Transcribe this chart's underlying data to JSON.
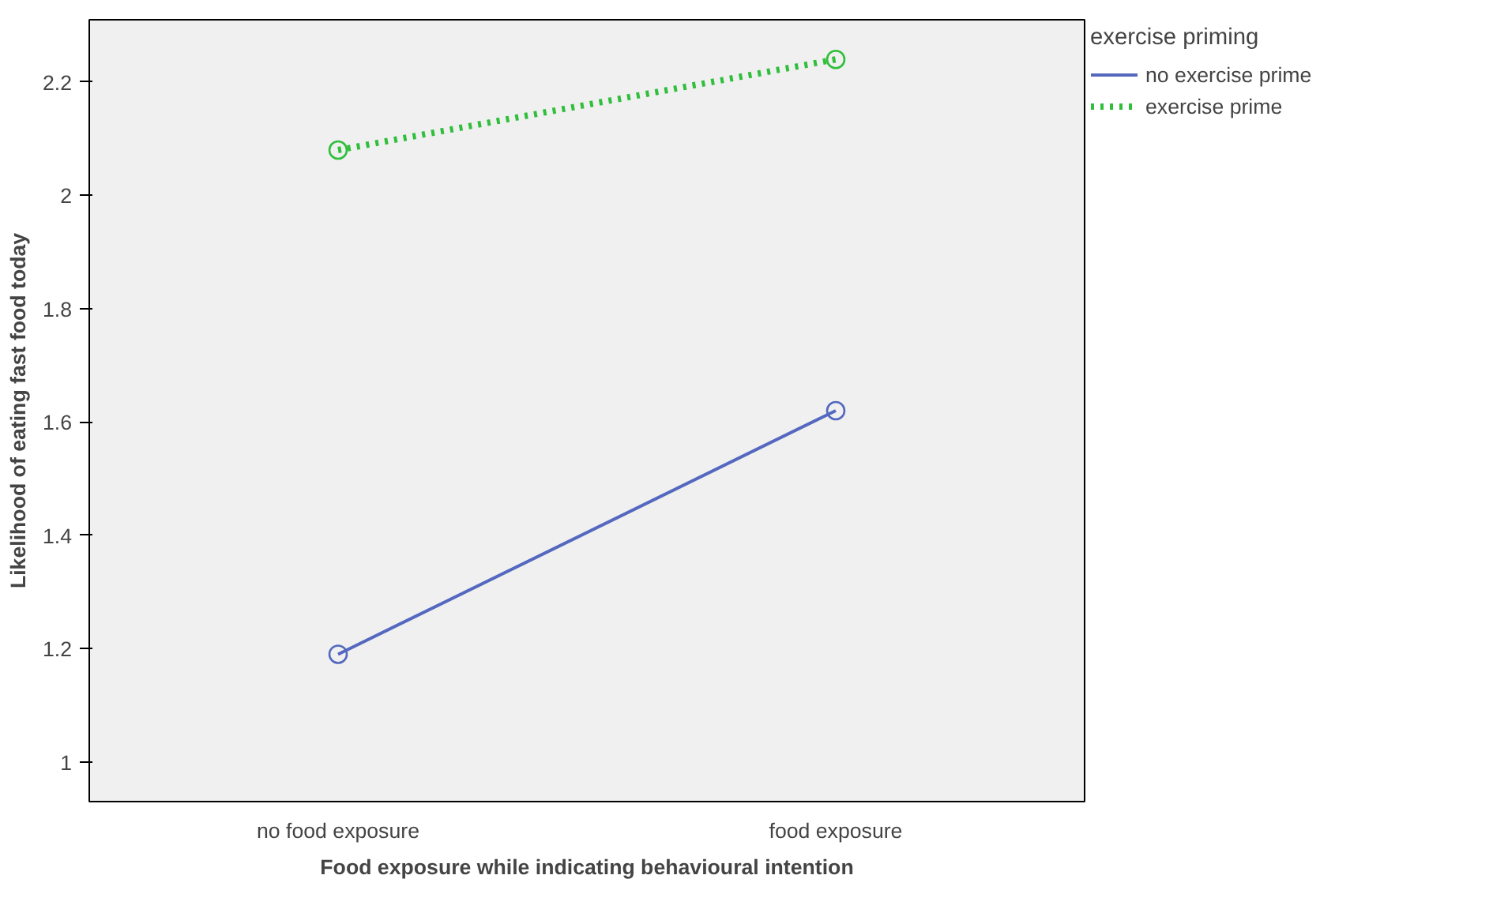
{
  "chart_data": {
    "type": "line",
    "xlabel": "Food exposure while indicating behavioural intention",
    "ylabel": "Likelihood of eating fast food today",
    "legend_title": "exercise priming",
    "categories": [
      "no food exposure",
      "food exposure"
    ],
    "series": [
      {
        "name": "no exercise prime",
        "color": "#5468c0",
        "values": [
          1.19,
          1.62
        ],
        "line_style": "solid"
      },
      {
        "name": "exercise prime",
        "color": "#2fbf3a",
        "values": [
          2.08,
          2.24
        ],
        "line_style": "dotted"
      }
    ],
    "ylim": [
      0.93,
      2.31
    ],
    "yticks": [
      1,
      1.2,
      1.4,
      1.6,
      1.8,
      2,
      2.2
    ],
    "grid": false,
    "legend": "top right",
    "marker": "circle"
  }
}
